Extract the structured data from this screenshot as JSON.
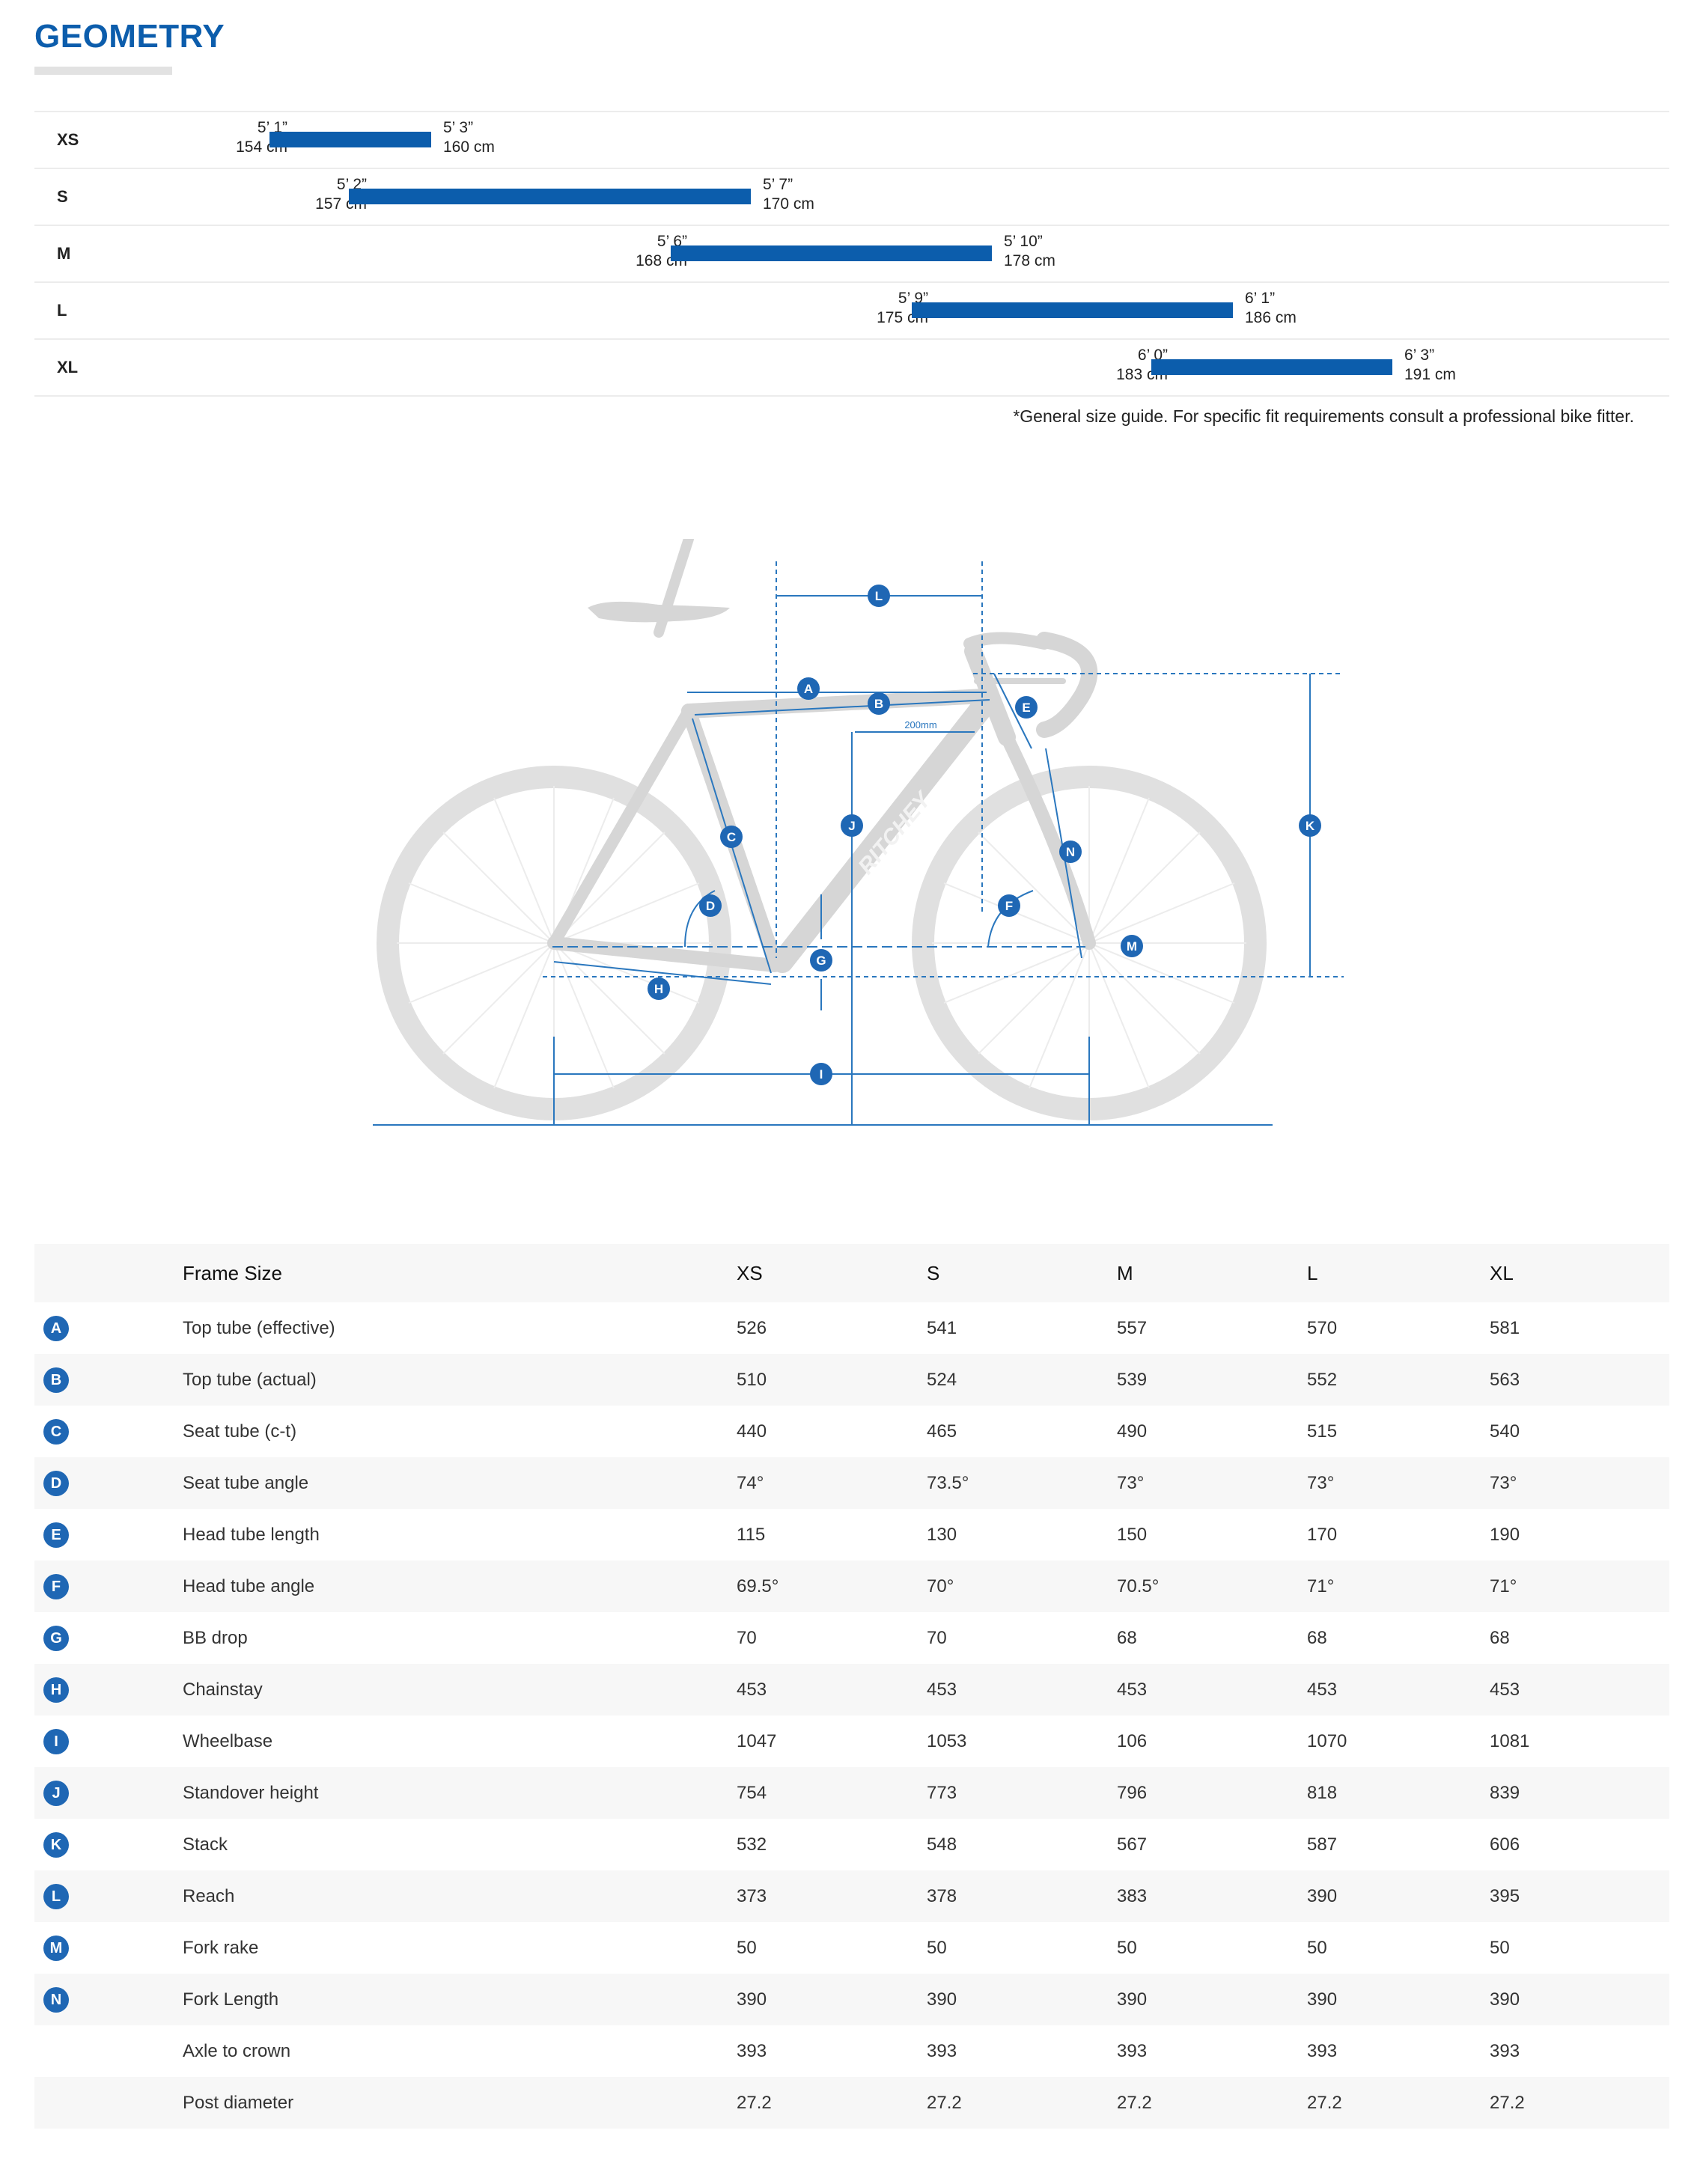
{
  "title": "GEOMETRY",
  "size_guide": {
    "rows": [
      {
        "size": "XS",
        "min_ft": "5’ 1”",
        "min_cm": "154 cm",
        "max_ft": "5’ 3”",
        "max_cm": "160 cm"
      },
      {
        "size": "S",
        "min_ft": "5’ 2”",
        "min_cm": "157 cm",
        "max_ft": "5’ 7”",
        "max_cm": "170 cm"
      },
      {
        "size": "M",
        "min_ft": "5’ 6”",
        "min_cm": "168 cm",
        "max_ft": "5’ 10”",
        "max_cm": "178 cm"
      },
      {
        "size": "L",
        "min_ft": "5’ 9”",
        "min_cm": "175 cm",
        "max_ft": "6’ 1”",
        "max_cm": "186 cm"
      },
      {
        "size": "XL",
        "min_ft": "6’ 0”",
        "min_cm": "183 cm",
        "max_ft": "6’ 3”",
        "max_cm": "191 cm"
      }
    ],
    "note": "*General size guide. For specific fit requirements consult a professional bike fitter."
  },
  "diagram": {
    "frame_text": "RITCHEY",
    "dimension_text": "200mm",
    "markers": [
      "A",
      "B",
      "C",
      "D",
      "E",
      "F",
      "G",
      "H",
      "I",
      "J",
      "K",
      "L",
      "M",
      "N"
    ]
  },
  "table": {
    "headers": [
      "Frame Size",
      "XS",
      "S",
      "M",
      "L",
      "XL"
    ],
    "rows": [
      {
        "key": "A",
        "name": "Top tube (effective)",
        "values": [
          "526",
          "541",
          "557",
          "570",
          "581"
        ]
      },
      {
        "key": "B",
        "name": "Top tube (actual)",
        "values": [
          "510",
          "524",
          "539",
          "552",
          "563"
        ]
      },
      {
        "key": "C",
        "name": "Seat tube (c-t)",
        "values": [
          "440",
          "465",
          "490",
          "515",
          "540"
        ]
      },
      {
        "key": "D",
        "name": "Seat tube angle",
        "values": [
          "74°",
          "73.5°",
          "73°",
          "73°",
          "73°"
        ]
      },
      {
        "key": "E",
        "name": "Head tube length",
        "values": [
          "115",
          "130",
          "150",
          "170",
          "190"
        ]
      },
      {
        "key": "F",
        "name": "Head tube angle",
        "values": [
          "69.5°",
          "70°",
          "70.5°",
          "71°",
          "71°"
        ]
      },
      {
        "key": "G",
        "name": "BB drop",
        "values": [
          "70",
          "70",
          "68",
          "68",
          "68"
        ]
      },
      {
        "key": "H",
        "name": "Chainstay",
        "values": [
          "453",
          "453",
          "453",
          "453",
          "453"
        ]
      },
      {
        "key": "I",
        "name": "Wheelbase",
        "values": [
          "1047",
          "1053",
          "106",
          "1070",
          "1081"
        ]
      },
      {
        "key": "J",
        "name": "Standover height",
        "values": [
          "754",
          "773",
          "796",
          "818",
          "839"
        ]
      },
      {
        "key": "K",
        "name": "Stack",
        "values": [
          "532",
          "548",
          "567",
          "587",
          "606"
        ]
      },
      {
        "key": "L",
        "name": "Reach",
        "values": [
          "373",
          "378",
          "383",
          "390",
          "395"
        ]
      },
      {
        "key": "M",
        "name": "Fork rake",
        "values": [
          "50",
          "50",
          "50",
          "50",
          "50"
        ]
      },
      {
        "key": "N",
        "name": "Fork Length",
        "values": [
          "390",
          "390",
          "390",
          "390",
          "390"
        ]
      },
      {
        "key": "",
        "name": "Axle to crown",
        "values": [
          "393",
          "393",
          "393",
          "393",
          "393"
        ]
      },
      {
        "key": "",
        "name": "Post diameter",
        "values": [
          "27.2",
          "27.2",
          "27.2",
          "27.2",
          "27.2"
        ]
      }
    ]
  }
}
